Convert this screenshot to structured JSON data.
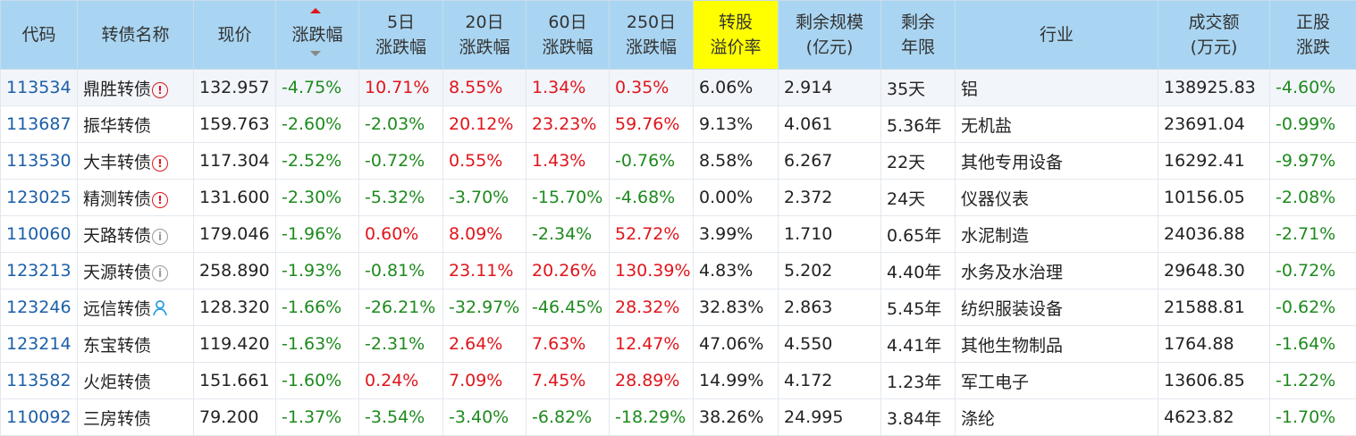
{
  "table": {
    "header": [
      [
        "代码"
      ],
      [
        "转债名称"
      ],
      [
        "现价"
      ],
      [
        "涨跌幅"
      ],
      [
        "5日",
        "涨跌幅"
      ],
      [
        "20日",
        "涨跌幅"
      ],
      [
        "60日",
        "涨跌幅"
      ],
      [
        "250日",
        "涨跌幅"
      ],
      [
        "转股",
        "溢价率"
      ],
      [
        "剩余规模",
        "(亿元)"
      ],
      [
        "剩余",
        "年限"
      ],
      [
        "行业"
      ],
      [
        "成交额",
        "(万元)"
      ],
      [
        "正股",
        "涨跌"
      ]
    ],
    "rows": [
      [
        "113534",
        "鼎胜转债",
        "132.957",
        "-4.75%",
        "10.71%",
        "8.55%",
        "1.34%",
        "0.35%",
        "6.06%",
        "2.914",
        "35天",
        "铝",
        "138925.83",
        "-4.60%"
      ],
      [
        "113687",
        "振华转债",
        "159.763",
        "-2.60%",
        "-2.03%",
        "20.12%",
        "23.23%",
        "59.76%",
        "9.13%",
        "4.061",
        "5.36年",
        "无机盐",
        "23691.04",
        "-0.99%"
      ],
      [
        "113530",
        "大丰转债",
        "117.304",
        "-2.52%",
        "-0.72%",
        "0.55%",
        "1.43%",
        "-0.76%",
        "8.58%",
        "6.267",
        "22天",
        "其他专用设备",
        "16292.41",
        "-9.97%"
      ],
      [
        "123025",
        "精测转债",
        "131.600",
        "-2.30%",
        "-5.32%",
        "-3.70%",
        "-15.70%",
        "-4.68%",
        "0.00%",
        "2.372",
        "24天",
        "仪器仪表",
        "10156.05",
        "-2.08%"
      ],
      [
        "110060",
        "天路转债",
        "179.046",
        "-1.96%",
        "0.60%",
        "8.09%",
        "-2.34%",
        "52.72%",
        "3.99%",
        "1.710",
        "0.65年",
        "水泥制造",
        "24036.88",
        "-2.71%"
      ],
      [
        "123213",
        "天源转债",
        "258.890",
        "-1.93%",
        "-0.81%",
        "23.11%",
        "20.26%",
        "130.39%",
        "4.83%",
        "5.202",
        "4.40年",
        "水务及水治理",
        "29648.30",
        "-0.72%"
      ],
      [
        "123246",
        "远信转债",
        "128.320",
        "-1.66%",
        "-26.21%",
        "-32.97%",
        "-46.45%",
        "28.32%",
        "32.83%",
        "2.863",
        "5.45年",
        "纺织服装设备",
        "21588.81",
        "-0.62%"
      ],
      [
        "123214",
        "东宝转债",
        "119.420",
        "-1.63%",
        "-2.31%",
        "2.64%",
        "7.63%",
        "12.47%",
        "47.06%",
        "4.550",
        "4.41年",
        "其他生物制品",
        "1764.88",
        "-1.64%"
      ],
      [
        "113582",
        "火炬转债",
        "151.661",
        "-1.60%",
        "0.24%",
        "7.09%",
        "7.45%",
        "28.89%",
        "14.99%",
        "4.172",
        "1.23年",
        "军工电子",
        "13606.85",
        "-1.22%"
      ],
      [
        "110092",
        "三房转债",
        "79.200",
        "-1.37%",
        "-3.54%",
        "-3.40%",
        "-6.82%",
        "-18.29%",
        "38.26%",
        "24.995",
        "3.84年",
        "涤纶",
        "4623.82",
        "-1.70%"
      ]
    ]
  }
}
